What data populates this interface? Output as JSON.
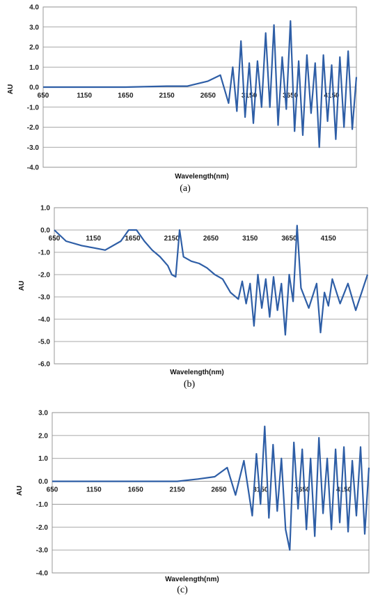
{
  "chart_data": [
    {
      "type": "line",
      "panel_caption": "(a)",
      "xlabel": "Wavelength(nm)",
      "ylabel": "AU",
      "xlim": [
        650,
        4450
      ],
      "ylim": [
        -4.0,
        4.0
      ],
      "y_ticks": [
        "4.0",
        "3.0",
        "2.0",
        "1.0",
        "0.0",
        "-1.0",
        "-2.0",
        "-3.0",
        "-4.0"
      ],
      "x_ticks": [
        "650",
        "1150",
        "1650",
        "2150",
        "2650",
        "3150",
        "3650",
        "4150"
      ],
      "grid": true,
      "series_color": "#2e5ea6",
      "x": [
        650,
        1150,
        1650,
        2150,
        2400,
        2650,
        2800,
        2900,
        2950,
        3000,
        3050,
        3100,
        3150,
        3200,
        3250,
        3300,
        3350,
        3400,
        3450,
        3500,
        3550,
        3600,
        3650,
        3700,
        3750,
        3800,
        3850,
        3900,
        3950,
        4000,
        4050,
        4100,
        4150,
        4200,
        4250,
        4300,
        4350,
        4400,
        4450
      ],
      "y": [
        0.0,
        0.0,
        0.0,
        0.05,
        0.05,
        0.3,
        0.6,
        -0.8,
        1.0,
        -1.2,
        2.3,
        -1.5,
        1.2,
        -1.8,
        1.3,
        -1.0,
        2.7,
        -1.0,
        3.1,
        -1.9,
        1.5,
        -1.1,
        3.3,
        -2.2,
        1.3,
        -2.4,
        1.6,
        -1.3,
        1.2,
        -3.0,
        1.6,
        -1.7,
        1.1,
        -2.6,
        1.5,
        -2.0,
        1.8,
        -2.1,
        0.5
      ]
    },
    {
      "type": "line",
      "panel_caption": "(b)",
      "xlabel": "Wavelength(nm)",
      "ylabel": "AU",
      "xlim": [
        650,
        4650
      ],
      "ylim": [
        -6.0,
        1.0
      ],
      "y_ticks": [
        "1.0",
        "0.0",
        "-1.0",
        "-2.0",
        "-3.0",
        "-4.0",
        "-5.0",
        "-6.0"
      ],
      "x_ticks": [
        "650",
        "1150",
        "1650",
        "2150",
        "2650",
        "3150",
        "3650",
        "4150"
      ],
      "grid": true,
      "series_color": "#2e5ea6",
      "x": [
        650,
        800,
        1000,
        1150,
        1300,
        1500,
        1600,
        1700,
        1800,
        1900,
        2000,
        2100,
        2150,
        2200,
        2250,
        2300,
        2400,
        2500,
        2600,
        2700,
        2750,
        2800,
        2900,
        3000,
        3050,
        3100,
        3150,
        3200,
        3250,
        3300,
        3350,
        3400,
        3450,
        3500,
        3550,
        3600,
        3650,
        3700,
        3750,
        3800,
        3900,
        4000,
        4050,
        4100,
        4150,
        4200,
        4300,
        4400,
        4500,
        4650
      ],
      "y": [
        0.0,
        -0.5,
        -0.7,
        -0.8,
        -0.9,
        -0.5,
        0.0,
        0.0,
        -0.5,
        -0.9,
        -1.2,
        -1.6,
        -2.0,
        -2.1,
        0.0,
        -1.2,
        -1.4,
        -1.5,
        -1.7,
        -2.0,
        -2.1,
        -2.2,
        -2.8,
        -3.1,
        -2.3,
        -3.3,
        -2.4,
        -4.3,
        -2.0,
        -3.5,
        -2.2,
        -3.9,
        -2.1,
        -3.6,
        -2.4,
        -4.7,
        -2.0,
        -3.2,
        0.2,
        -2.6,
        -3.5,
        -2.4,
        -4.6,
        -2.8,
        -3.4,
        -2.2,
        -3.3,
        -2.4,
        -3.6,
        -2.0
      ]
    },
    {
      "type": "line",
      "panel_caption": "(c)",
      "xlabel": "Wavelength(nm)",
      "ylabel": "AU",
      "xlim": [
        650,
        4450
      ],
      "ylim": [
        -4.0,
        3.0
      ],
      "y_ticks": [
        "3.0",
        "2.0",
        "1.0",
        "0.0",
        "-1.0",
        "-2.0",
        "-3.0",
        "-4.0"
      ],
      "x_ticks": [
        "650",
        "1150",
        "1650",
        "2150",
        "2650",
        "3150",
        "3650",
        "4150"
      ],
      "grid": true,
      "series_color": "#2e5ea6",
      "x": [
        650,
        1150,
        1650,
        2150,
        2400,
        2600,
        2750,
        2850,
        2950,
        3050,
        3100,
        3150,
        3200,
        3250,
        3300,
        3350,
        3400,
        3450,
        3500,
        3550,
        3600,
        3650,
        3700,
        3750,
        3800,
        3850,
        3900,
        3950,
        4000,
        4050,
        4100,
        4150,
        4200,
        4250,
        4300,
        4350,
        4400,
        4450
      ],
      "y": [
        0.0,
        0.0,
        0.0,
        0.0,
        0.1,
        0.2,
        0.6,
        -0.6,
        0.9,
        -1.5,
        1.2,
        -1.0,
        2.4,
        -1.6,
        1.6,
        -1.3,
        1.0,
        -2.1,
        -3.0,
        1.7,
        -1.2,
        1.4,
        -2.1,
        1.0,
        -2.4,
        1.9,
        -1.4,
        1.0,
        -2.1,
        1.4,
        -1.8,
        1.5,
        -2.2,
        0.9,
        -1.5,
        1.5,
        -2.3,
        0.6
      ]
    }
  ]
}
